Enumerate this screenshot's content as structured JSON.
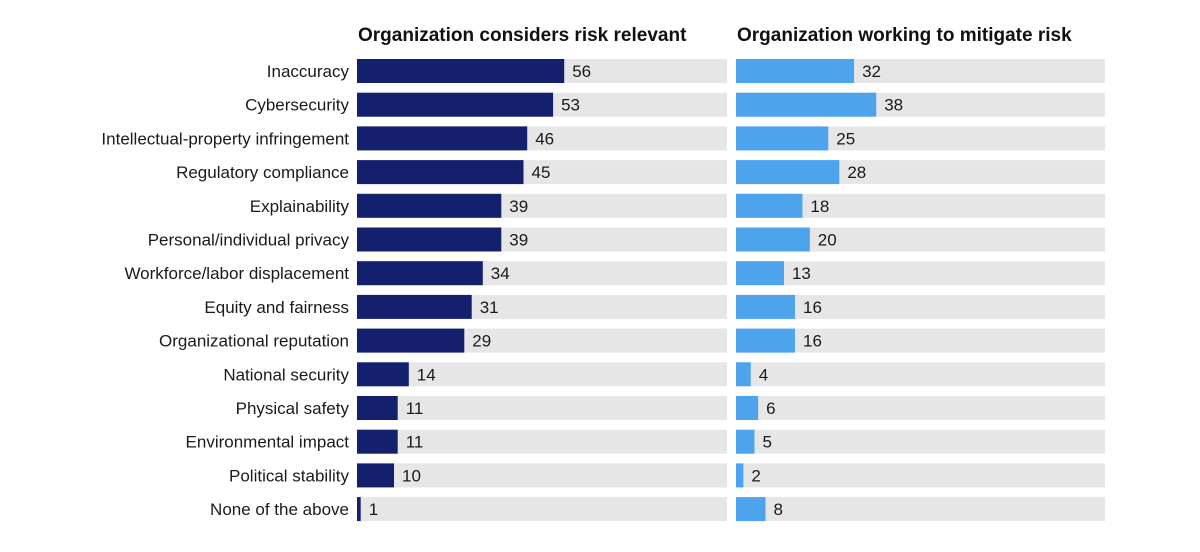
{
  "chart_data": {
    "type": "bar",
    "orientation": "horizontal",
    "xlim": [
      0,
      100
    ],
    "categories": [
      "Inaccuracy",
      "Cybersecurity",
      "Intellectual-property infringement",
      "Regulatory compliance",
      "Explainability",
      "Personal/individual privacy",
      "Workforce/labor displacement",
      "Equity and fairness",
      "Organizational reputation",
      "National security",
      "Physical safety",
      "Environmental impact",
      "Political stability",
      "None of the above"
    ],
    "series": [
      {
        "name": "Organization considers risk relevant",
        "color": "#14206e",
        "values": [
          56,
          53,
          46,
          45,
          39,
          39,
          34,
          31,
          29,
          14,
          11,
          11,
          10,
          1
        ]
      },
      {
        "name": "Organization working to mitigate risk",
        "color": "#4da3ec",
        "values": [
          32,
          38,
          25,
          28,
          18,
          20,
          13,
          16,
          16,
          4,
          6,
          5,
          2,
          8
        ]
      }
    ],
    "track_color": "#e6e6e6"
  }
}
